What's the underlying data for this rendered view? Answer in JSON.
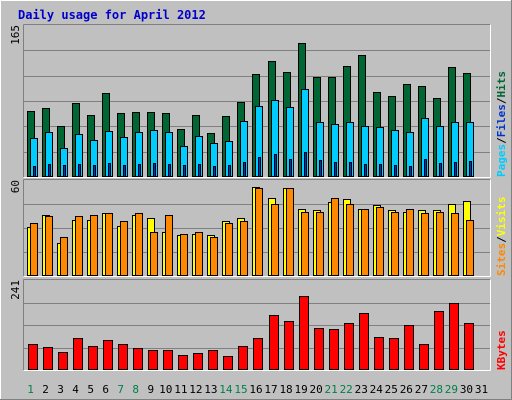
{
  "chart_data": {
    "type": "bar",
    "title": "Daily usage for April 2012",
    "categories": [
      "1",
      "2",
      "3",
      "4",
      "5",
      "6",
      "7",
      "8",
      "9",
      "10",
      "11",
      "12",
      "13",
      "14",
      "15",
      "16",
      "17",
      "18",
      "19",
      "20",
      "21",
      "22",
      "23",
      "24",
      "25",
      "26",
      "27",
      "28",
      "29",
      "30",
      "31"
    ],
    "weekend_days": [
      "1",
      "7",
      "8",
      "14",
      "15",
      "21",
      "22",
      "28",
      "29"
    ],
    "panels": [
      {
        "id": "hits-panel",
        "ymax_label": "165",
        "ymax": 165,
        "legend": [
          "Pages",
          "/",
          "Files",
          "/",
          "Hits"
        ],
        "series": [
          {
            "name": "Hits",
            "color": "#006633",
            "values": [
              73,
              76,
              56,
              81,
              68,
              92,
              70,
              71,
              72,
              70,
              53,
              68,
              48,
              67,
              83,
              113,
              128,
              116,
              147,
              110,
              110,
              122,
              134,
              93,
              89,
              102,
              100,
              87,
              121,
              114
            ]
          },
          {
            "name": "Files",
            "color": "#00ccff",
            "values": [
              43,
              49,
              32,
              47,
              41,
              51,
              44,
              49,
              52,
              49,
              34,
              45,
              37,
              40,
              62,
              78,
              85,
              77,
              97,
              61,
              58,
              60,
              56,
              55,
              52,
              50,
              65,
              56,
              61,
              61
            ]
          },
          {
            "name": "Pages",
            "color": "#0033cc",
            "values": [
              12,
              14,
              13,
              14,
              13,
              15,
              13,
              14,
              15,
              14,
              13,
              14,
              12,
              13,
              17,
              22,
              25,
              20,
              28,
              19,
              16,
              17,
              14,
              14,
              13,
              12,
              20,
              15,
              17,
              18
            ]
          }
        ]
      },
      {
        "id": "visits-panel",
        "ymax_label": "60",
        "ymax": 60,
        "legend": [
          "Sites",
          "/",
          "Visits"
        ],
        "series": [
          {
            "name": "Visits",
            "color": "#ffff00",
            "values": [
              31,
              39,
              21,
              36,
              36,
              40,
              32,
              39,
              37,
              28,
              26,
              27,
              26,
              35,
              37,
              57,
              50,
              56,
              43,
              42,
              47,
              49,
              43,
              45,
              42,
              41,
              42,
              42,
              46,
              48
            ]
          },
          {
            "name": "Sites",
            "color": "#ff8800",
            "values": [
              34,
              38,
              25,
              38,
              39,
              40,
              35,
              40,
              28,
              39,
              27,
              28,
              25,
              34,
              35,
              56,
              46,
              56,
              41,
              41,
              50,
              46,
              43,
              44,
              41,
              43,
              40,
              41,
              40,
              36
            ]
          }
        ]
      },
      {
        "id": "kbytes-panel",
        "ymax_label": "241",
        "ymax": 241,
        "legend": [
          "KBytes"
        ],
        "series": [
          {
            "name": "KBytes",
            "color": "#ff0000",
            "values": [
              72,
              64,
              48,
              87,
              66,
              82,
              72,
              60,
              54,
              54,
              40,
              47,
              54,
              38,
              65,
              88,
              150,
              135,
              203,
              116,
              113,
              128,
              157,
              90,
              88,
              122,
              70,
              161,
              183,
              130
            ]
          }
        ]
      }
    ]
  }
}
